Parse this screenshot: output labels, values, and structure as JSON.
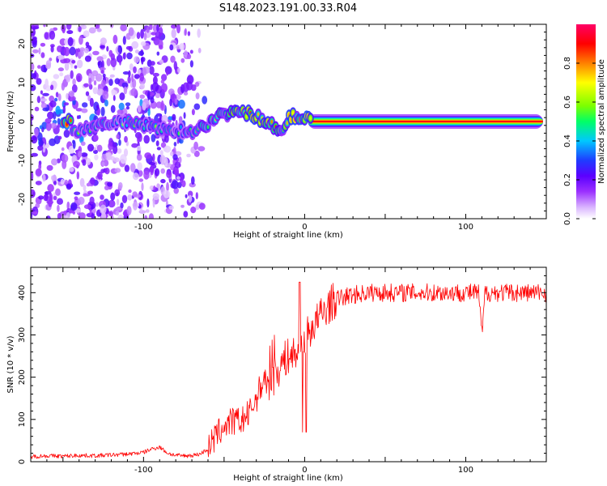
{
  "chart_data": [
    {
      "type": "heatmap",
      "title": "S148.2023.191.00.33.R04",
      "xlabel": "Height of straight line (km)",
      "ylabel": "Frequency (Hz)",
      "xlim": [
        -170,
        150
      ],
      "ylim": [
        -25,
        25
      ],
      "x_ticks": [
        -100,
        0,
        100
      ],
      "y_ticks": [
        -20,
        -10,
        0,
        10,
        20
      ],
      "colorbar": {
        "label": "Normalized spectral amplitude",
        "range": [
          0,
          1
        ],
        "ticks": [
          "0.0",
          "0.2",
          "0.4",
          "0.6",
          "0.8"
        ],
        "colors": [
          "#ffffff",
          "#d9b3ff",
          "#9b30ff",
          "#5b00ff",
          "#1f3cff",
          "#00c8ff",
          "#00ff66",
          "#7cff00",
          "#ffff00",
          "#ff8000",
          "#ff0000",
          "#ff0066"
        ]
      },
      "ridge": [
        {
          "x": -145,
          "f": -3.5,
          "amp": 0.45
        },
        {
          "x": -130,
          "f": -1.0,
          "amp": 0.4
        },
        {
          "x": -115,
          "f": 0.0,
          "amp": 0.45
        },
        {
          "x": -100,
          "f": -1.0,
          "amp": 0.5
        },
        {
          "x": -90,
          "f": -2.0,
          "amp": 0.4
        },
        {
          "x": -70,
          "f": -2.5,
          "amp": 0.45
        },
        {
          "x": -62,
          "f": -1.0,
          "amp": 0.55
        },
        {
          "x": -55,
          "f": 1.0,
          "amp": 0.6
        },
        {
          "x": -48,
          "f": 2.0,
          "amp": 0.6
        },
        {
          "x": -42,
          "f": 3.5,
          "amp": 0.7
        },
        {
          "x": -38,
          "f": 2.5,
          "amp": 0.7
        },
        {
          "x": -32,
          "f": 1.5,
          "amp": 0.8
        },
        {
          "x": -26,
          "f": 0.5,
          "amp": 0.75
        },
        {
          "x": -20,
          "f": -0.8,
          "amp": 0.7
        },
        {
          "x": -15,
          "f": -2.5,
          "amp": 0.65
        },
        {
          "x": -10,
          "f": 1.0,
          "amp": 0.75
        },
        {
          "x": -5,
          "f": 1.5,
          "amp": 0.8
        },
        {
          "x": 0,
          "f": 0.5,
          "amp": 0.85
        },
        {
          "x": 10,
          "f": 0.0,
          "amp": 0.9
        },
        {
          "x": 40,
          "f": 0.0,
          "amp": 0.95
        },
        {
          "x": 80,
          "f": 0.0,
          "amp": 0.95
        },
        {
          "x": 105,
          "f": 0.0,
          "amp": 0.95
        },
        {
          "x": 148,
          "f": 0.0,
          "amp": 0.95
        }
      ]
    },
    {
      "type": "line",
      "xlabel": "Height of straight line (km)",
      "ylabel": "SNR (10 * v/v)",
      "xlim": [
        -170,
        150
      ],
      "ylim": [
        0,
        460
      ],
      "x_ticks": [
        -100,
        0,
        100
      ],
      "y_ticks": [
        0,
        100,
        200,
        300,
        400
      ],
      "color": "#ff0000",
      "x": [
        -170,
        -160,
        -150,
        -140,
        -130,
        -120,
        -110,
        -100,
        -95,
        -90,
        -85,
        -80,
        -75,
        -70,
        -65,
        -60,
        -55,
        -50,
        -45,
        -40,
        -35,
        -30,
        -25,
        -22,
        -20,
        -15,
        -10,
        -5,
        -2,
        0,
        5,
        10,
        15,
        20,
        25,
        30,
        40,
        50,
        60,
        70,
        80,
        90,
        100,
        108,
        110,
        112,
        120,
        130,
        140,
        150
      ],
      "y": [
        12,
        14,
        13,
        15,
        14,
        16,
        18,
        22,
        30,
        35,
        20,
        15,
        14,
        15,
        18,
        30,
        60,
        85,
        95,
        95,
        110,
        150,
        200,
        170,
        190,
        230,
        250,
        255,
        270,
        290,
        320,
        345,
        370,
        385,
        390,
        395,
        400,
        400,
        400,
        400,
        400,
        400,
        400,
        400,
        300,
        400,
        400,
        400,
        400,
        400
      ]
    }
  ]
}
